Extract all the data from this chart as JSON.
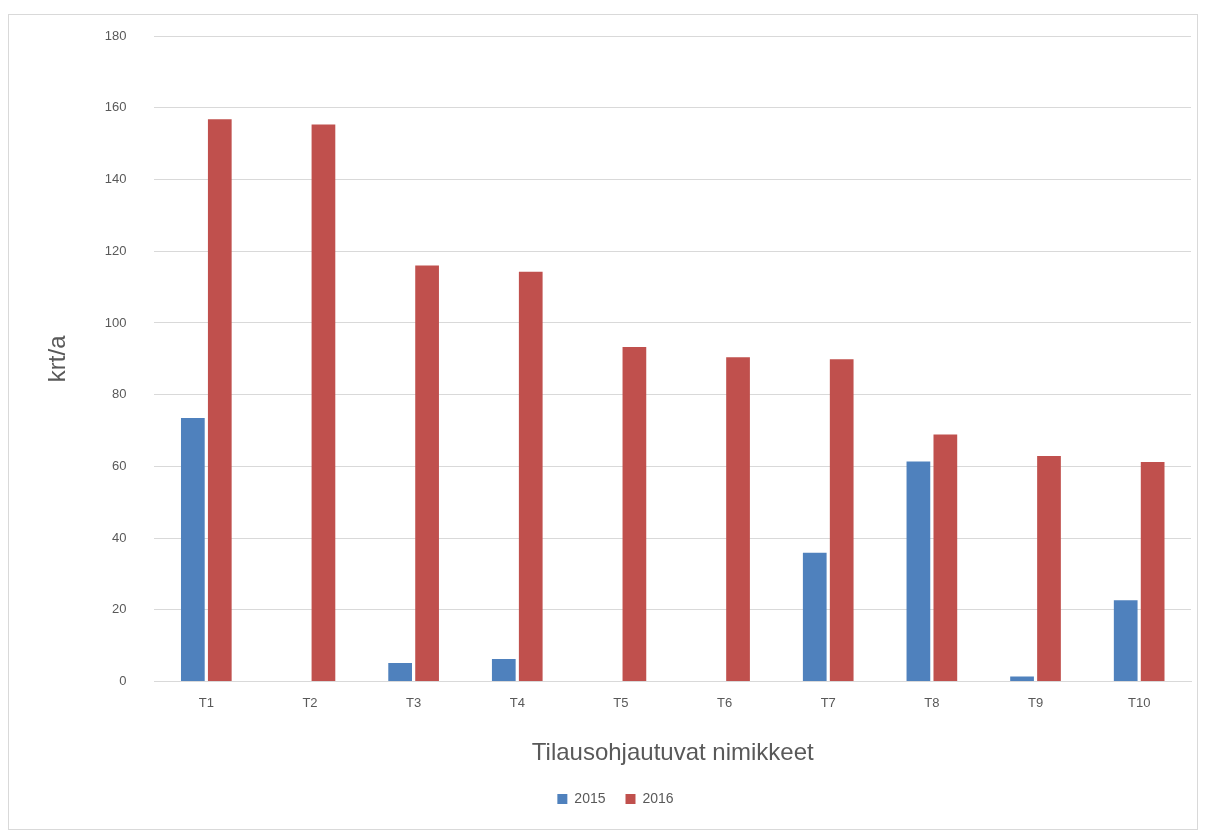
{
  "chart_data": {
    "type": "bar",
    "xlabel": "Tilausohjautuvat nimikkeet",
    "ylabel": "krt/a",
    "categories": [
      "T1",
      "T2",
      "T3",
      "T4",
      "T5",
      "T6",
      "T7",
      "T8",
      "T9",
      "T10"
    ],
    "series": [
      {
        "name": "2015",
        "color": "#4f81bd",
        "values": [
          73.5,
          0,
          5.2,
          6.3,
          0,
          0,
          35.9,
          61.4,
          1.4,
          22.7
        ]
      },
      {
        "name": "2016",
        "color": "#c0504d",
        "values": [
          156.8,
          155.3,
          116,
          114.3,
          93.3,
          90.4,
          89.9,
          68.9,
          62.9,
          61.2
        ]
      }
    ],
    "ylim": [
      0,
      180
    ],
    "yticks": [
      0,
      20,
      40,
      60,
      80,
      100,
      120,
      140,
      160,
      180
    ],
    "grid": "y",
    "legend": "bottom"
  }
}
